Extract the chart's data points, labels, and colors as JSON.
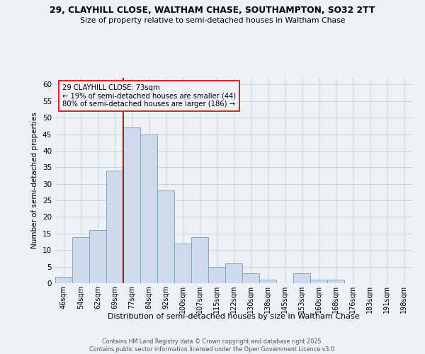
{
  "title1": "29, CLAYHILL CLOSE, WALTHAM CHASE, SOUTHAMPTON, SO32 2TT",
  "title2": "Size of property relative to semi-detached houses in Waltham Chase",
  "xlabel": "Distribution of semi-detached houses by size in Waltham Chase",
  "ylabel": "Number of semi-detached properties",
  "footnote": "Contains HM Land Registry data © Crown copyright and database right 2025.\nContains public sector information licensed under the Open Government Licence v3.0.",
  "bin_labels": [
    "46sqm",
    "54sqm",
    "62sqm",
    "69sqm",
    "77sqm",
    "84sqm",
    "92sqm",
    "100sqm",
    "107sqm",
    "115sqm",
    "122sqm",
    "130sqm",
    "138sqm",
    "145sqm",
    "153sqm",
    "160sqm",
    "168sqm",
    "176sqm",
    "183sqm",
    "191sqm",
    "198sqm"
  ],
  "bar_values": [
    2,
    14,
    16,
    34,
    47,
    45,
    28,
    12,
    14,
    5,
    6,
    3,
    1,
    0,
    3,
    1,
    1,
    0,
    0,
    0,
    0
  ],
  "bar_color": "#ccdaeb",
  "bar_edge_color": "#7aaac8",
  "grid_color": "#ccd5de",
  "bg_color": "#eef2f7",
  "vline_color": "#cc0000",
  "annotation_text": "29 CLAYHILL CLOSE: 73sqm\n← 19% of semi-detached houses are smaller (44)\n80% of semi-detached houses are larger (186) →",
  "ylim": [
    0,
    62
  ],
  "yticks": [
    0,
    5,
    10,
    15,
    20,
    25,
    30,
    35,
    40,
    45,
    50,
    55,
    60
  ]
}
